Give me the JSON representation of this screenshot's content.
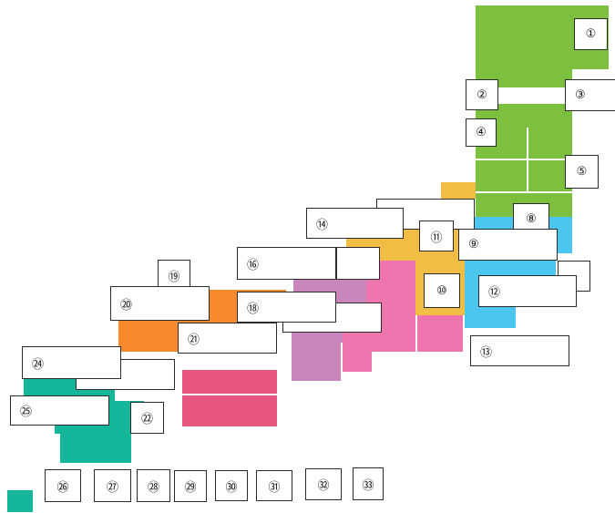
{
  "colors": {
    "hokkaido_tohoku": "#7dbf3f",
    "kanto": "#4cc6ee",
    "chubu_yellow": "#f1bd45",
    "chubu_pink": "#ee75ae",
    "kinki": "#c986bc",
    "chugoku": "#f78a2e",
    "shikoku": "#e9567f",
    "kyushu": "#16b69a"
  },
  "labels": [
    "①",
    "②",
    "③",
    "④",
    "⑤",
    "⑧",
    "⑨",
    "⑩",
    "⑪",
    "⑫",
    "⑬",
    "⑭",
    "⑯",
    "⑱",
    "⑲",
    "⑳",
    "㉑",
    "㉒",
    "㉔",
    "㉕",
    "㉖",
    "㉗",
    "㉘",
    "㉙",
    "㉚",
    "㉛",
    "㉜",
    "㉝"
  ]
}
